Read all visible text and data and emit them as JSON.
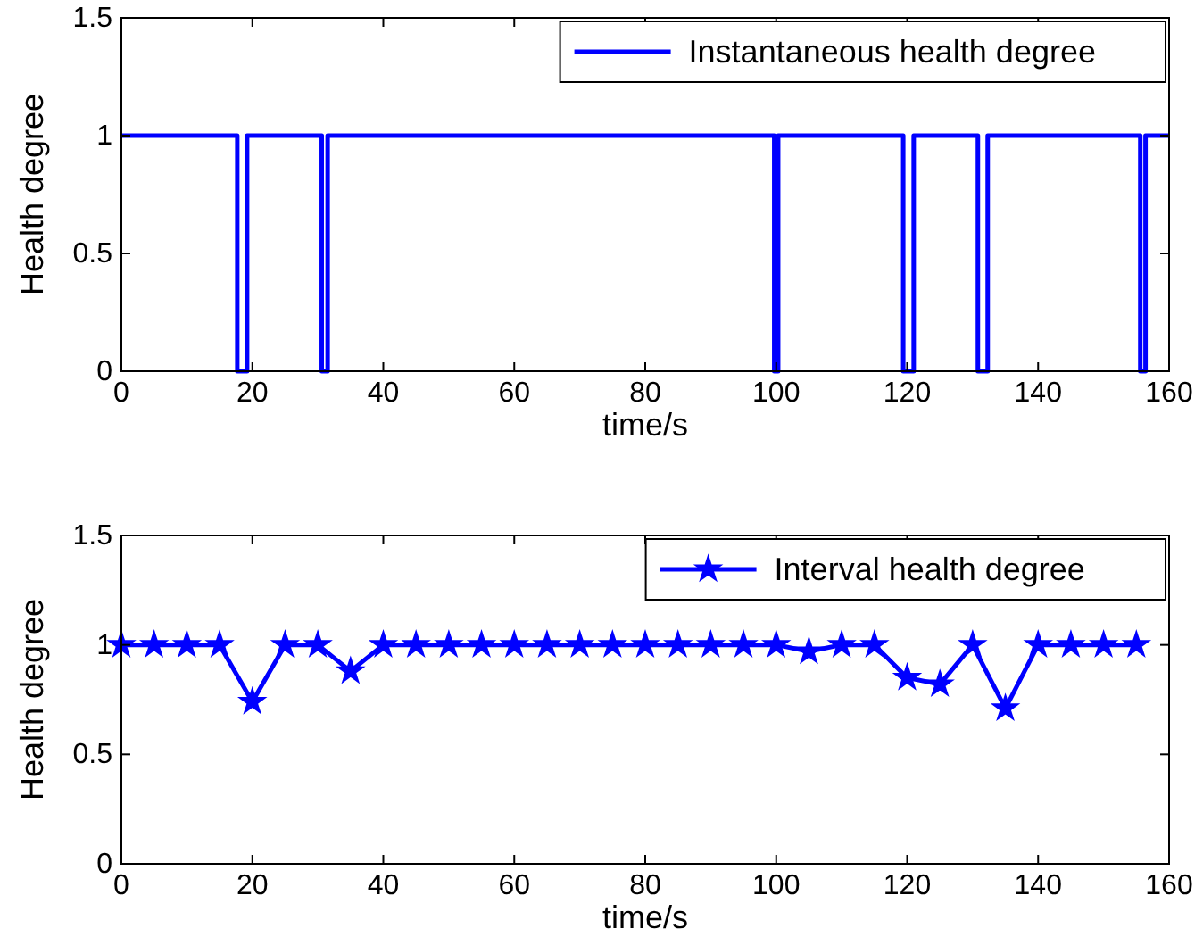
{
  "chart_data": [
    {
      "type": "step",
      "xlabel": "time/s",
      "ylabel": "Health degree",
      "xlim": [
        0,
        160
      ],
      "ylim": [
        0,
        1.5
      ],
      "xticks": [
        0,
        20,
        40,
        60,
        80,
        100,
        120,
        140,
        160
      ],
      "yticks": [
        0,
        0.5,
        1,
        1.5
      ],
      "grid": false,
      "legend": "top right",
      "line_style": "solid",
      "marker": "none",
      "series": [
        {
          "name": "Instantaneous health degree",
          "color": "#0000ff",
          "x": [
            0,
            17.7,
            19.2,
            30.6,
            31.5,
            99.7,
            100.3,
            119.4,
            121,
            130.8,
            132.3,
            155.6,
            156.4,
            160
          ],
          "values": [
            1,
            0,
            1,
            0,
            1,
            0,
            1,
            0,
            1,
            0,
            1,
            0,
            1,
            1
          ]
        }
      ]
    },
    {
      "type": "line",
      "xlabel": "time/s",
      "ylabel": "Health degree",
      "xlim": [
        0,
        160
      ],
      "ylim": [
        0,
        1.5
      ],
      "xticks": [
        0,
        20,
        40,
        60,
        80,
        100,
        120,
        140,
        160
      ],
      "yticks": [
        0,
        0.5,
        1,
        1.5
      ],
      "grid": false,
      "legend": "top right",
      "line_style": "solid",
      "marker": "star",
      "series": [
        {
          "name": "Interval health degree",
          "color": "#0000ff",
          "x": [
            0,
            5,
            10,
            15,
            20,
            25,
            30,
            35,
            40,
            45,
            50,
            55,
            60,
            65,
            70,
            75,
            80,
            85,
            90,
            95,
            100,
            105,
            110,
            115,
            120,
            125,
            130,
            135,
            140,
            145,
            150,
            155
          ],
          "values": [
            1,
            1,
            1,
            1,
            0.74,
            1,
            1,
            0.88,
            1,
            1,
            1,
            1,
            1,
            1,
            1,
            1,
            1,
            1,
            1,
            1,
            1,
            0.97,
            1,
            1,
            0.85,
            0.82,
            1,
            0.71,
            1,
            1,
            1,
            1
          ]
        }
      ]
    }
  ]
}
